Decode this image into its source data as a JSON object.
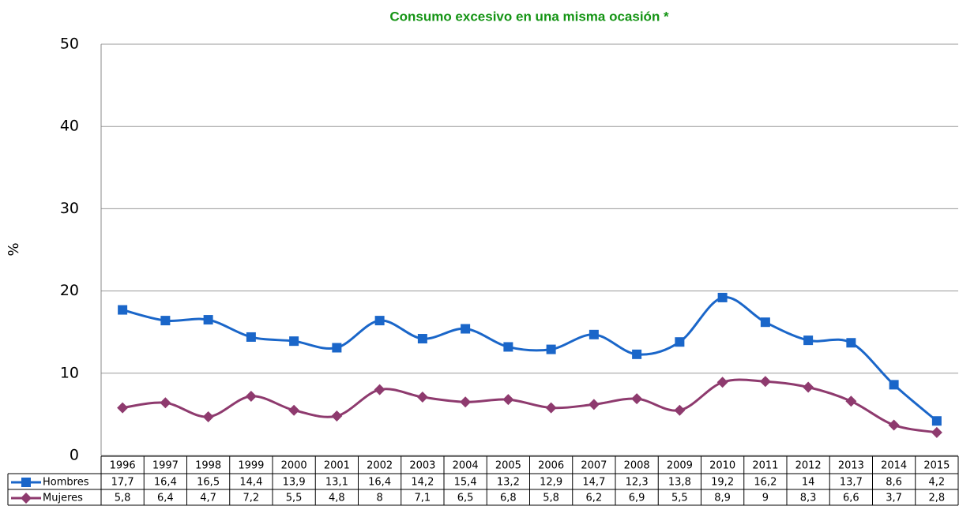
{
  "chart_data": {
    "type": "line",
    "title": "Consumo excesivo en una misma ocasión *",
    "y_label": "%",
    "categories": [
      "1996",
      "1997",
      "1998",
      "1999",
      "2000",
      "2001",
      "2002",
      "2003",
      "2004",
      "2005",
      "2006",
      "2007",
      "2008",
      "2009",
      "2010",
      "2011",
      "2012",
      "2013",
      "2014",
      "2015"
    ],
    "series": [
      {
        "name": "Hombres",
        "color": "#1a66c9",
        "marker": "square",
        "values": [
          17.7,
          16.4,
          16.5,
          14.4,
          13.9,
          13.1,
          16.4,
          14.2,
          15.4,
          13.2,
          12.9,
          14.7,
          12.3,
          13.8,
          19.2,
          16.2,
          14,
          13.7,
          8.6,
          4.2
        ],
        "value_labels": [
          "17,7",
          "16,4",
          "16,5",
          "14,4",
          "13,9",
          "13,1",
          "16,4",
          "14,2",
          "15,4",
          "13,2",
          "12,9",
          "14,7",
          "12,3",
          "13,8",
          "19,2",
          "16,2",
          "14",
          "13,7",
          "8,6",
          "4,2"
        ]
      },
      {
        "name": "Mujeres",
        "color": "#8e3a6e",
        "marker": "diamond",
        "values": [
          5.8,
          6.4,
          4.7,
          7.2,
          5.5,
          4.8,
          8,
          7.1,
          6.5,
          6.8,
          5.8,
          6.2,
          6.9,
          5.5,
          8.9,
          9,
          8.3,
          6.6,
          3.7,
          2.8
        ],
        "value_labels": [
          "5,8",
          "6,4",
          "4,7",
          "7,2",
          "5,5",
          "4,8",
          "8",
          "7,1",
          "6,5",
          "6,8",
          "5,8",
          "6,2",
          "6,9",
          "5,5",
          "8,9",
          "9",
          "8,3",
          "6,6",
          "3,7",
          "2,8"
        ]
      }
    ],
    "ylim": [
      0,
      50
    ],
    "yticks": [
      0,
      10,
      20,
      30,
      40,
      50
    ],
    "grid": true,
    "smooth": true,
    "data_table": true
  }
}
